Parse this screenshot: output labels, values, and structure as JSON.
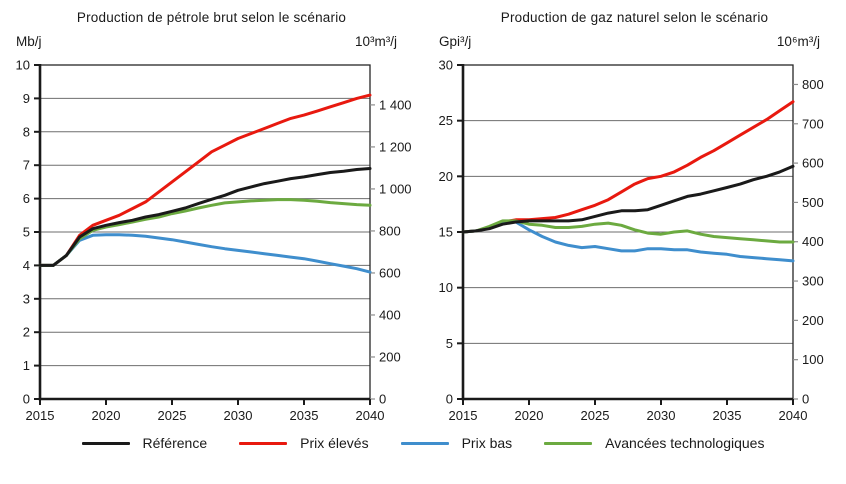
{
  "colors": {
    "grid": "#6e6e6e",
    "axis": "#1a1a1a",
    "border": "#262626",
    "right_tick": "#8c8c8c",
    "background": "#ffffff"
  },
  "legend": {
    "items": [
      {
        "label": "Référence",
        "color": "#1a1a1a"
      },
      {
        "label": "Prix élevés",
        "color": "#e8190f"
      },
      {
        "label": "Prix bas",
        "color": "#3f8ecd"
      },
      {
        "label": "Avancées technologiques",
        "color": "#6caa40"
      }
    ]
  },
  "chart_data": [
    {
      "type": "line",
      "title": "Production de pétrole brut selon le scénario",
      "left_axis": {
        "unit": "Mb/j",
        "min": 0,
        "max": 10,
        "ticks": [
          0,
          1,
          2,
          3,
          4,
          5,
          6,
          7,
          8,
          9,
          10
        ]
      },
      "right_axis": {
        "unit": "10³m³/j",
        "max_value": 1590,
        "ticks": [
          0,
          200,
          400,
          600,
          800,
          1000,
          1200,
          1400
        ],
        "labels": [
          "0",
          "200",
          "400",
          "600",
          "800",
          "1 000",
          "1 200",
          "1 400"
        ]
      },
      "x_axis": {
        "min": 2015,
        "max": 2040,
        "ticks": [
          2015,
          2020,
          2025,
          2030,
          2035,
          2040
        ]
      },
      "x": [
        2015,
        2016,
        2017,
        2018,
        2019,
        2020,
        2021,
        2022,
        2023,
        2024,
        2025,
        2026,
        2027,
        2028,
        2029,
        2030,
        2031,
        2032,
        2033,
        2034,
        2035,
        2036,
        2037,
        2038,
        2039,
        2040
      ],
      "grid": true,
      "legend_position": "bottom-shared",
      "draw_order": [
        1,
        2,
        3,
        0
      ],
      "series": [
        {
          "name": "Référence",
          "color": "#1a1a1a",
          "values": [
            4.0,
            4.0,
            4.3,
            4.85,
            5.1,
            5.2,
            5.28,
            5.35,
            5.45,
            5.52,
            5.62,
            5.72,
            5.85,
            5.98,
            6.1,
            6.25,
            6.35,
            6.45,
            6.52,
            6.6,
            6.65,
            6.72,
            6.78,
            6.82,
            6.87,
            6.9
          ]
        },
        {
          "name": "Prix élevés",
          "color": "#e8190f",
          "values": [
            4.0,
            4.0,
            4.3,
            4.9,
            5.2,
            5.35,
            5.5,
            5.7,
            5.9,
            6.2,
            6.5,
            6.8,
            7.1,
            7.4,
            7.6,
            7.8,
            7.95,
            8.1,
            8.25,
            8.4,
            8.5,
            8.62,
            8.75,
            8.87,
            9.0,
            9.1
          ]
        },
        {
          "name": "Prix bas",
          "color": "#3f8ecd",
          "values": [
            4.0,
            4.0,
            4.3,
            4.75,
            4.9,
            4.92,
            4.92,
            4.9,
            4.87,
            4.82,
            4.77,
            4.7,
            4.63,
            4.56,
            4.5,
            4.45,
            4.4,
            4.35,
            4.3,
            4.25,
            4.2,
            4.13,
            4.05,
            3.98,
            3.9,
            3.8
          ]
        },
        {
          "name": "Avancées technologiques",
          "color": "#6caa40",
          "values": [
            4.0,
            4.0,
            4.3,
            4.8,
            5.05,
            5.15,
            5.22,
            5.3,
            5.38,
            5.45,
            5.55,
            5.63,
            5.72,
            5.8,
            5.87,
            5.9,
            5.93,
            5.95,
            5.97,
            5.97,
            5.95,
            5.92,
            5.88,
            5.85,
            5.82,
            5.8
          ]
        }
      ]
    },
    {
      "type": "line",
      "title": "Production de gaz naturel selon le scénario",
      "left_axis": {
        "unit": "Gpi³/j",
        "min": 0,
        "max": 30,
        "ticks": [
          0,
          5,
          10,
          15,
          20,
          25,
          30
        ]
      },
      "right_axis": {
        "unit": "10⁶m³/j",
        "max_value": 849.5,
        "ticks": [
          0,
          100,
          200,
          300,
          400,
          500,
          600,
          700,
          800
        ],
        "labels": [
          "0",
          "100",
          "200",
          "300",
          "400",
          "500",
          "600",
          "700",
          "800"
        ]
      },
      "x_axis": {
        "min": 2015,
        "max": 2040,
        "ticks": [
          2015,
          2020,
          2025,
          2030,
          2035,
          2040
        ]
      },
      "x": [
        2015,
        2016,
        2017,
        2018,
        2019,
        2020,
        2021,
        2022,
        2023,
        2024,
        2025,
        2026,
        2027,
        2028,
        2029,
        2030,
        2031,
        2032,
        2033,
        2034,
        2035,
        2036,
        2037,
        2038,
        2039,
        2040
      ],
      "grid": true,
      "legend_position": "bottom-shared",
      "draw_order": [
        1,
        2,
        3,
        0
      ],
      "series": [
        {
          "name": "Référence",
          "color": "#1a1a1a",
          "values": [
            15.0,
            15.1,
            15.3,
            15.7,
            15.9,
            16.0,
            16.0,
            16.0,
            16.0,
            16.1,
            16.4,
            16.7,
            16.9,
            16.9,
            17.0,
            17.4,
            17.8,
            18.2,
            18.4,
            18.7,
            19.0,
            19.3,
            19.7,
            20.0,
            20.4,
            20.9
          ]
        },
        {
          "name": "Prix élevés",
          "color": "#e8190f",
          "values": [
            15.0,
            15.1,
            15.4,
            15.9,
            16.1,
            16.1,
            16.2,
            16.3,
            16.6,
            17.0,
            17.4,
            17.9,
            18.6,
            19.3,
            19.8,
            20.0,
            20.4,
            21.0,
            21.7,
            22.3,
            23.0,
            23.7,
            24.4,
            25.1,
            25.9,
            26.7
          ]
        },
        {
          "name": "Prix bas",
          "color": "#3f8ecd",
          "values": [
            15.0,
            15.1,
            15.4,
            15.9,
            15.9,
            15.2,
            14.6,
            14.1,
            13.8,
            13.6,
            13.7,
            13.5,
            13.3,
            13.3,
            13.5,
            13.5,
            13.4,
            13.4,
            13.2,
            13.1,
            13.0,
            12.8,
            12.7,
            12.6,
            12.5,
            12.4
          ]
        },
        {
          "name": "Avancées technologiques",
          "color": "#6caa40",
          "values": [
            15.0,
            15.1,
            15.5,
            16.0,
            16.0,
            15.7,
            15.6,
            15.4,
            15.4,
            15.5,
            15.7,
            15.8,
            15.6,
            15.2,
            14.9,
            14.8,
            15.0,
            15.1,
            14.8,
            14.6,
            14.5,
            14.4,
            14.3,
            14.2,
            14.1,
            14.1
          ]
        }
      ]
    }
  ]
}
